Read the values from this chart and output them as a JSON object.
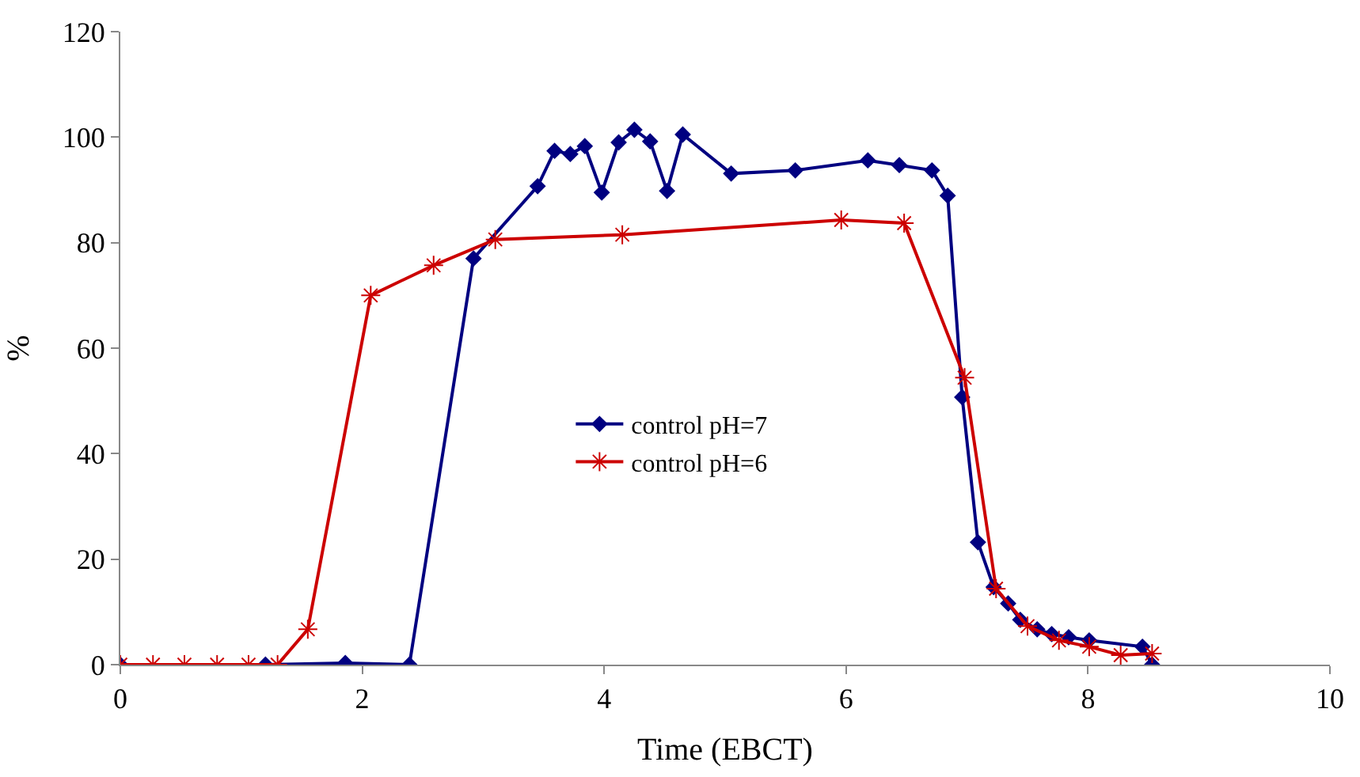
{
  "chart_data": {
    "type": "line",
    "xlabel": "Time (EBCT)",
    "ylabel": "%",
    "xlim": [
      0,
      10
    ],
    "ylim": [
      0,
      120
    ],
    "xticks": [
      0,
      2,
      4,
      6,
      8,
      10
    ],
    "yticks": [
      0,
      20,
      40,
      60,
      80,
      100,
      120
    ],
    "legend": "center",
    "line_style": "solid",
    "series": [
      {
        "name": "control pH=7",
        "color": "#000080",
        "marker": "diamond",
        "x": [
          0,
          1.2,
          1.86,
          2.39,
          2.92,
          3.45,
          3.59,
          3.72,
          3.84,
          3.98,
          4.12,
          4.25,
          4.38,
          4.52,
          4.65,
          5.05,
          5.58,
          6.18,
          6.44,
          6.71,
          6.84,
          6.96,
          7.09,
          7.22,
          7.34,
          7.44,
          7.58,
          7.7,
          7.84,
          8.01,
          8.45,
          8.53
        ],
        "values": [
          0,
          0,
          0.3,
          0,
          77,
          90.7,
          97.4,
          96.8,
          98.3,
          89.5,
          99,
          101.4,
          99.2,
          89.8,
          100.5,
          93.1,
          93.7,
          95.6,
          94.7,
          93.7,
          88.9,
          50.7,
          23.2,
          14.7,
          11.6,
          8.5,
          6.7,
          5.8,
          5.2,
          4.6,
          3.4,
          0
        ]
      },
      {
        "name": "control pH=6",
        "color": "#cc0000",
        "marker": "cross",
        "x": [
          0,
          0.27,
          0.53,
          0.8,
          1.06,
          1.3,
          1.55,
          2.07,
          2.59,
          3.1,
          4.15,
          5.96,
          6.48,
          6.98,
          7.24,
          7.5,
          7.76,
          8.01,
          8.27,
          8.53
        ],
        "values": [
          0,
          0,
          0,
          0,
          0,
          0,
          6.7,
          70,
          75.7,
          80.6,
          81.5,
          84.3,
          83.7,
          54.4,
          14.4,
          7.3,
          4.6,
          3.4,
          1.8,
          2.1
        ]
      }
    ]
  }
}
